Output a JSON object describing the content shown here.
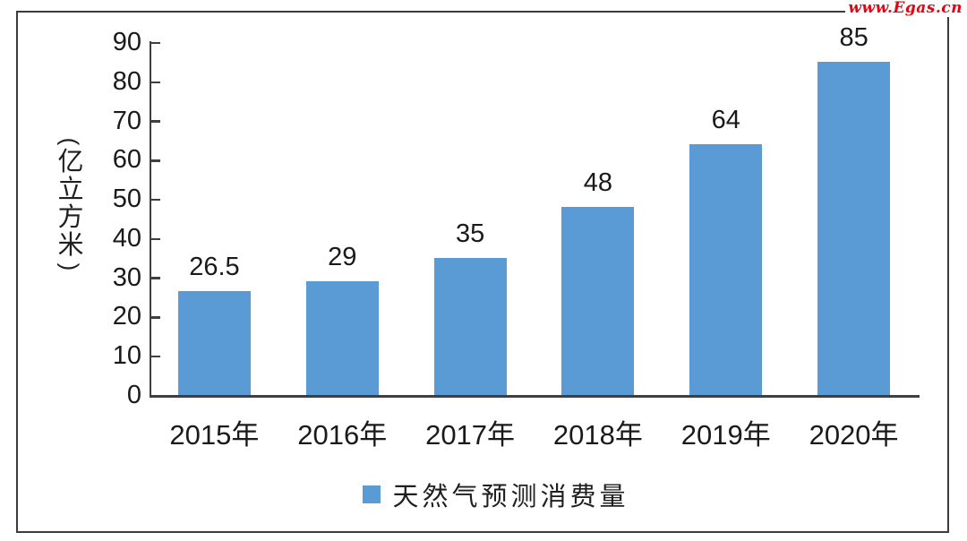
{
  "watermark": "www.Egas.cn",
  "chart_data": {
    "type": "bar",
    "title": "",
    "categories": [
      "2015年",
      "2016年",
      "2017年",
      "2018年",
      "2019年",
      "2020年"
    ],
    "values": [
      26.5,
      29,
      35,
      48,
      64,
      85
    ],
    "value_labels": [
      "26.5",
      "29",
      "35",
      "48",
      "64",
      "85"
    ],
    "series": [
      {
        "name": "天然气预测消费量",
        "values": [
          26.5,
          29,
          35,
          48,
          64,
          85
        ]
      }
    ],
    "xlabel": "",
    "ylabel": "（亿立方米）",
    "ylim": [
      0,
      90
    ],
    "yticks": [
      0,
      10,
      20,
      30,
      40,
      50,
      60,
      70,
      80,
      90
    ],
    "grid": false,
    "legend_position": "bottom",
    "bar_color": "#5B9BD5",
    "tick_direction": "inside"
  },
  "legend": {
    "label": "天然气预测消费量",
    "marker_color": "#5B9BD5"
  },
  "colors": {
    "bar": "#5B9BD5",
    "axis": "#3f3f3f",
    "text": "#1a1a1a",
    "watermark_red": "#e00613",
    "border": "#3c3c3c",
    "background": "#ffffff"
  }
}
